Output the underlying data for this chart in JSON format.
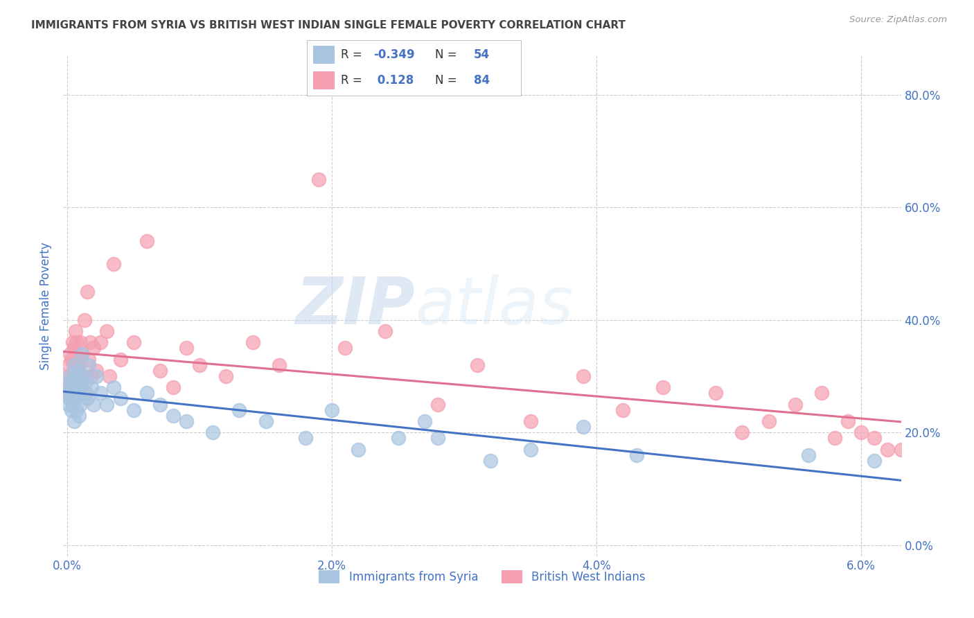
{
  "title": "IMMIGRANTS FROM SYRIA VS BRITISH WEST INDIAN SINGLE FEMALE POVERTY CORRELATION CHART",
  "source": "Source: ZipAtlas.com",
  "ylabel": "Single Female Poverty",
  "color_syria": "#a8c4e0",
  "color_bwi": "#f4a0b0",
  "color_syria_line": "#4472c4",
  "color_bwi_line": "#e07090",
  "color_axis": "#4472c4",
  "color_title": "#444444",
  "color_source": "#999999",
  "watermark_color": "#dde8f5",
  "xlim": [
    -0.0003,
    0.063
  ],
  "ylim": [
    -0.02,
    0.87
  ],
  "xtick_vals": [
    0.0,
    0.02,
    0.04,
    0.06
  ],
  "xtick_labels": [
    "0.0%",
    "2.0%",
    "4.0%",
    "6.0%"
  ],
  "ytick_vals": [
    0.0,
    0.2,
    0.4,
    0.6,
    0.8
  ],
  "ytick_labels": [
    "0.0%",
    "20.0%",
    "40.0%",
    "60.0%",
    "80.0%"
  ],
  "syria_x": [
    5e-05,
    0.0001,
    0.0001,
    0.0002,
    0.0002,
    0.0003,
    0.0003,
    0.0004,
    0.0004,
    0.0005,
    0.0005,
    0.0005,
    0.0006,
    0.0006,
    0.0007,
    0.0007,
    0.0008,
    0.0008,
    0.0009,
    0.001,
    0.001,
    0.0011,
    0.0012,
    0.0013,
    0.0014,
    0.0015,
    0.0016,
    0.0018,
    0.002,
    0.0022,
    0.0025,
    0.003,
    0.0035,
    0.004,
    0.005,
    0.006,
    0.007,
    0.008,
    0.009,
    0.011,
    0.013,
    0.015,
    0.018,
    0.02,
    0.022,
    0.025,
    0.027,
    0.028,
    0.032,
    0.035,
    0.039,
    0.043,
    0.056,
    0.061
  ],
  "syria_y": [
    0.27,
    0.28,
    0.25,
    0.3,
    0.26,
    0.29,
    0.24,
    0.28,
    0.25,
    0.32,
    0.27,
    0.22,
    0.3,
    0.26,
    0.28,
    0.24,
    0.31,
    0.27,
    0.23,
    0.29,
    0.25,
    0.34,
    0.3,
    0.27,
    0.29,
    0.26,
    0.32,
    0.28,
    0.25,
    0.3,
    0.27,
    0.25,
    0.28,
    0.26,
    0.24,
    0.27,
    0.25,
    0.23,
    0.22,
    0.2,
    0.24,
    0.22,
    0.19,
    0.24,
    0.17,
    0.19,
    0.22,
    0.19,
    0.15,
    0.17,
    0.21,
    0.16,
    0.16,
    0.15
  ],
  "bwi_x": [
    3e-05,
    5e-05,
    0.0001,
    0.0001,
    0.0002,
    0.0002,
    0.0003,
    0.0003,
    0.0004,
    0.0004,
    0.0005,
    0.0005,
    0.0005,
    0.0006,
    0.0006,
    0.0007,
    0.0007,
    0.0008,
    0.0008,
    0.0009,
    0.001,
    0.001,
    0.0011,
    0.0012,
    0.0013,
    0.0014,
    0.0015,
    0.0016,
    0.0017,
    0.0018,
    0.002,
    0.0022,
    0.0025,
    0.003,
    0.0032,
    0.0035,
    0.004,
    0.005,
    0.006,
    0.007,
    0.008,
    0.009,
    0.01,
    0.012,
    0.014,
    0.016,
    0.019,
    0.021,
    0.024,
    0.028,
    0.031,
    0.035,
    0.039,
    0.042,
    0.045,
    0.049,
    0.051,
    0.053,
    0.055,
    0.057,
    0.058,
    0.059,
    0.06,
    0.061,
    0.062,
    0.063
  ],
  "bwi_y": [
    0.3,
    0.27,
    0.32,
    0.28,
    0.34,
    0.26,
    0.33,
    0.29,
    0.36,
    0.28,
    0.35,
    0.31,
    0.27,
    0.38,
    0.3,
    0.36,
    0.26,
    0.33,
    0.29,
    0.32,
    0.36,
    0.28,
    0.34,
    0.3,
    0.4,
    0.27,
    0.45,
    0.33,
    0.36,
    0.3,
    0.35,
    0.31,
    0.36,
    0.38,
    0.3,
    0.5,
    0.33,
    0.36,
    0.54,
    0.31,
    0.28,
    0.35,
    0.32,
    0.3,
    0.36,
    0.32,
    0.65,
    0.35,
    0.38,
    0.25,
    0.32,
    0.22,
    0.3,
    0.24,
    0.28,
    0.27,
    0.2,
    0.22,
    0.25,
    0.27,
    0.19,
    0.22,
    0.2,
    0.19,
    0.17,
    0.17
  ]
}
